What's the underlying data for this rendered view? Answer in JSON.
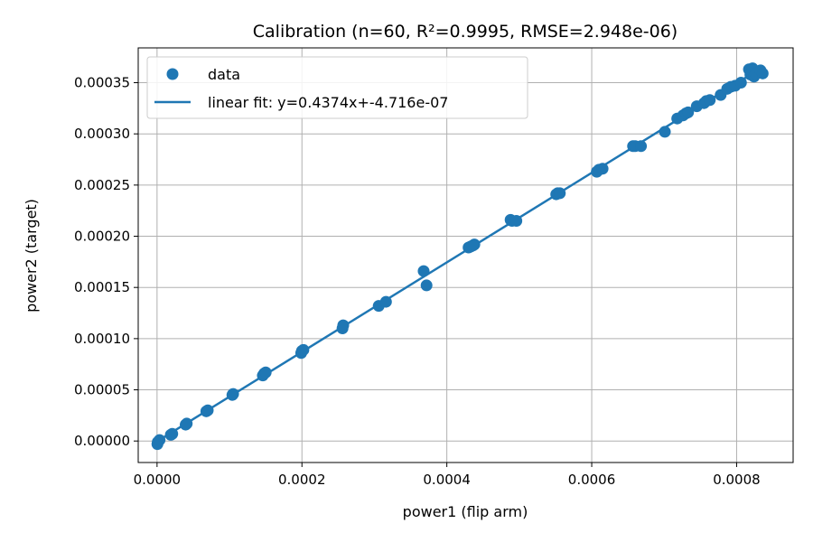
{
  "chart_data": {
    "type": "scatter",
    "title": "Calibration (n=60, R²=0.9995, RMSE=2.948e-06)",
    "xlabel": "power1 (flip arm)",
    "ylabel": "power2 (target)",
    "xlim": [
      -2.6e-05,
      0.000878
    ],
    "ylim": [
      -2.1e-05,
      0.000384
    ],
    "xticks": [
      0.0,
      0.0002,
      0.0004,
      0.0006,
      0.0008
    ],
    "xtick_labels": [
      "0.0000",
      "0.0002",
      "0.0004",
      "0.0006",
      "0.0008"
    ],
    "yticks": [
      0.0,
      5e-05,
      0.0001,
      0.00015,
      0.0002,
      0.00025,
      0.0003,
      0.00035
    ],
    "ytick_labels": [
      "0.00000",
      "0.00005",
      "0.00010",
      "0.00015",
      "0.00020",
      "0.00025",
      "0.00030",
      "0.00035"
    ],
    "grid": true,
    "legend_position": "top-left",
    "colors": {
      "series": "#1f77b4"
    },
    "series": [
      {
        "name": "data",
        "kind": "scatter",
        "x": [
          5e-07,
          1e-06,
          3.5e-06,
          1.9e-05,
          2.1e-05,
          3.95e-05,
          4.1e-05,
          6.8e-05,
          7e-05,
          0.000104,
          0.000105,
          0.000146,
          0.000148,
          0.00015,
          0.000199,
          0.0002,
          0.000202,
          0.000256,
          0.000257,
          0.000306,
          0.000316,
          0.000368,
          0.000372,
          0.00043,
          0.000433,
          0.000436,
          0.000438,
          0.000488,
          0.00049,
          0.000496,
          0.000551,
          0.000553,
          0.000556,
          0.000607,
          0.00061,
          0.000615,
          0.000657,
          0.00066,
          0.000668,
          0.000701,
          0.000718,
          0.000726,
          0.00073,
          0.000733,
          0.000745,
          0.000755,
          0.000758,
          0.000763,
          0.000778,
          0.000787,
          0.000792,
          0.000798,
          0.000806,
          0.000817,
          0.000819,
          0.000822,
          0.000824,
          0.000826,
          0.000833,
          0.000836
        ],
        "y": [
          -3e-06,
          -1e-06,
          1e-06,
          6e-06,
          7e-06,
          1.6e-05,
          1.7e-05,
          2.9e-05,
          3e-05,
          4.5e-05,
          4.6e-05,
          6.4e-05,
          6.6e-05,
          6.7e-05,
          8.6e-05,
          8.8e-05,
          8.9e-05,
          0.00011,
          0.000113,
          0.000132,
          0.000136,
          0.000166,
          0.000152,
          0.000189,
          0.00019,
          0.000191,
          0.000192,
          0.000216,
          0.000215,
          0.000215,
          0.000241,
          0.000242,
          0.000242,
          0.000263,
          0.000265,
          0.000266,
          0.000288,
          0.000288,
          0.000288,
          0.000302,
          0.000315,
          0.000318,
          0.00032,
          0.000321,
          0.000327,
          0.00033,
          0.000332,
          0.000333,
          0.000338,
          0.000344,
          0.000346,
          0.000347,
          0.00035,
          0.000363,
          0.000358,
          0.000364,
          0.000356,
          0.000359,
          0.000362,
          0.000359
        ]
      },
      {
        "name": "linear fit: y=0.4374x+-4.716e-07",
        "kind": "line",
        "x": [
          5e-07,
          0.000836
        ],
        "y": [
          -2.5e-07,
          0.00036518
        ]
      }
    ]
  }
}
